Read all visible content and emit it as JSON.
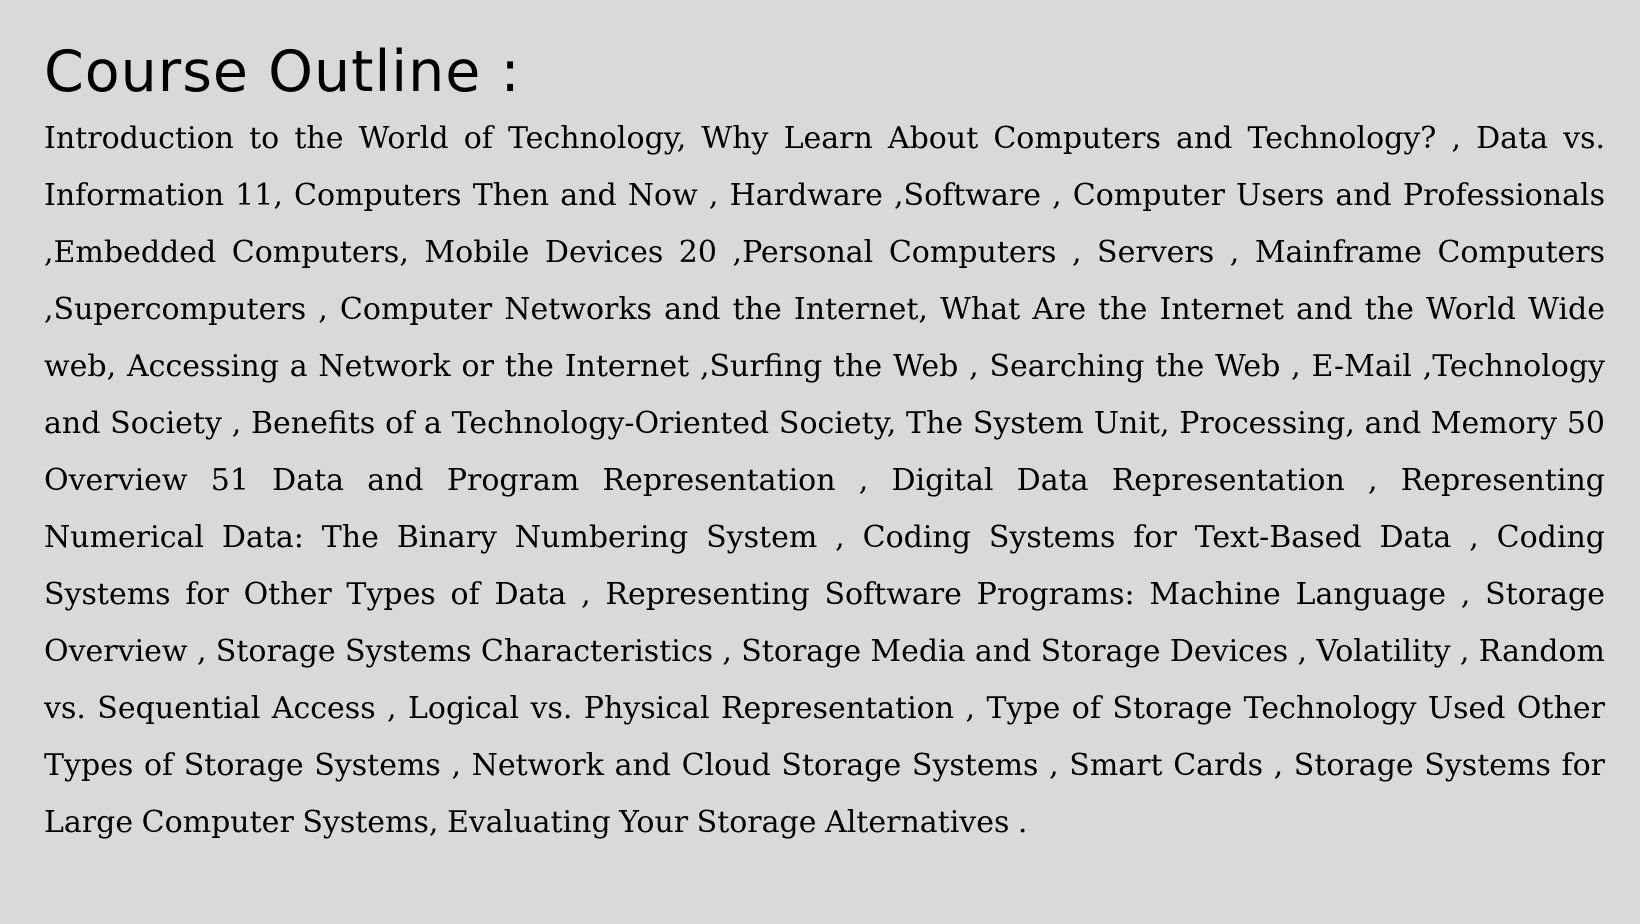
{
  "document": {
    "heading": "Course Outline :",
    "body": "Introduction to the World of Technology, Why Learn About Computers and Technology? , Data vs. Information 11, Computers Then and Now , Hardware ,Software , Computer Users and Professionals ,Embedded Computers, Mobile Devices 20 ,Personal Computers , Servers , Mainframe Computers ,Supercomputers , Computer Networks and the Internet, What Are the Internet and the World Wide web, Accessing a Network or the Internet ,Surfing the Web , Searching the Web , E-Mail ,Technology and Society , Benefits of a Technology-Oriented Society, The System Unit, Processing, and Memory 50 Overview 51 Data and Program Representation , Digital Data Representation , Representing Numerical Data: The Binary Numbering System , Coding Systems for Text-Based Data , Coding Systems for Other Types of Data , Representing Software Programs: Machine Language , Storage Overview , Storage Systems Characteristics , Storage Media and Storage Devices , Volatility , Random vs. Sequential Access , Logical vs. Physical Representation , Type of Storage Technology Used Other Types of Storage Systems , Network and Cloud Storage Systems , Smart Cards , Storage Systems for Large Computer Systems, Evaluating Your Storage Alternatives ."
  },
  "colors": {
    "background": "#d9d9d9",
    "text": "#000000"
  }
}
